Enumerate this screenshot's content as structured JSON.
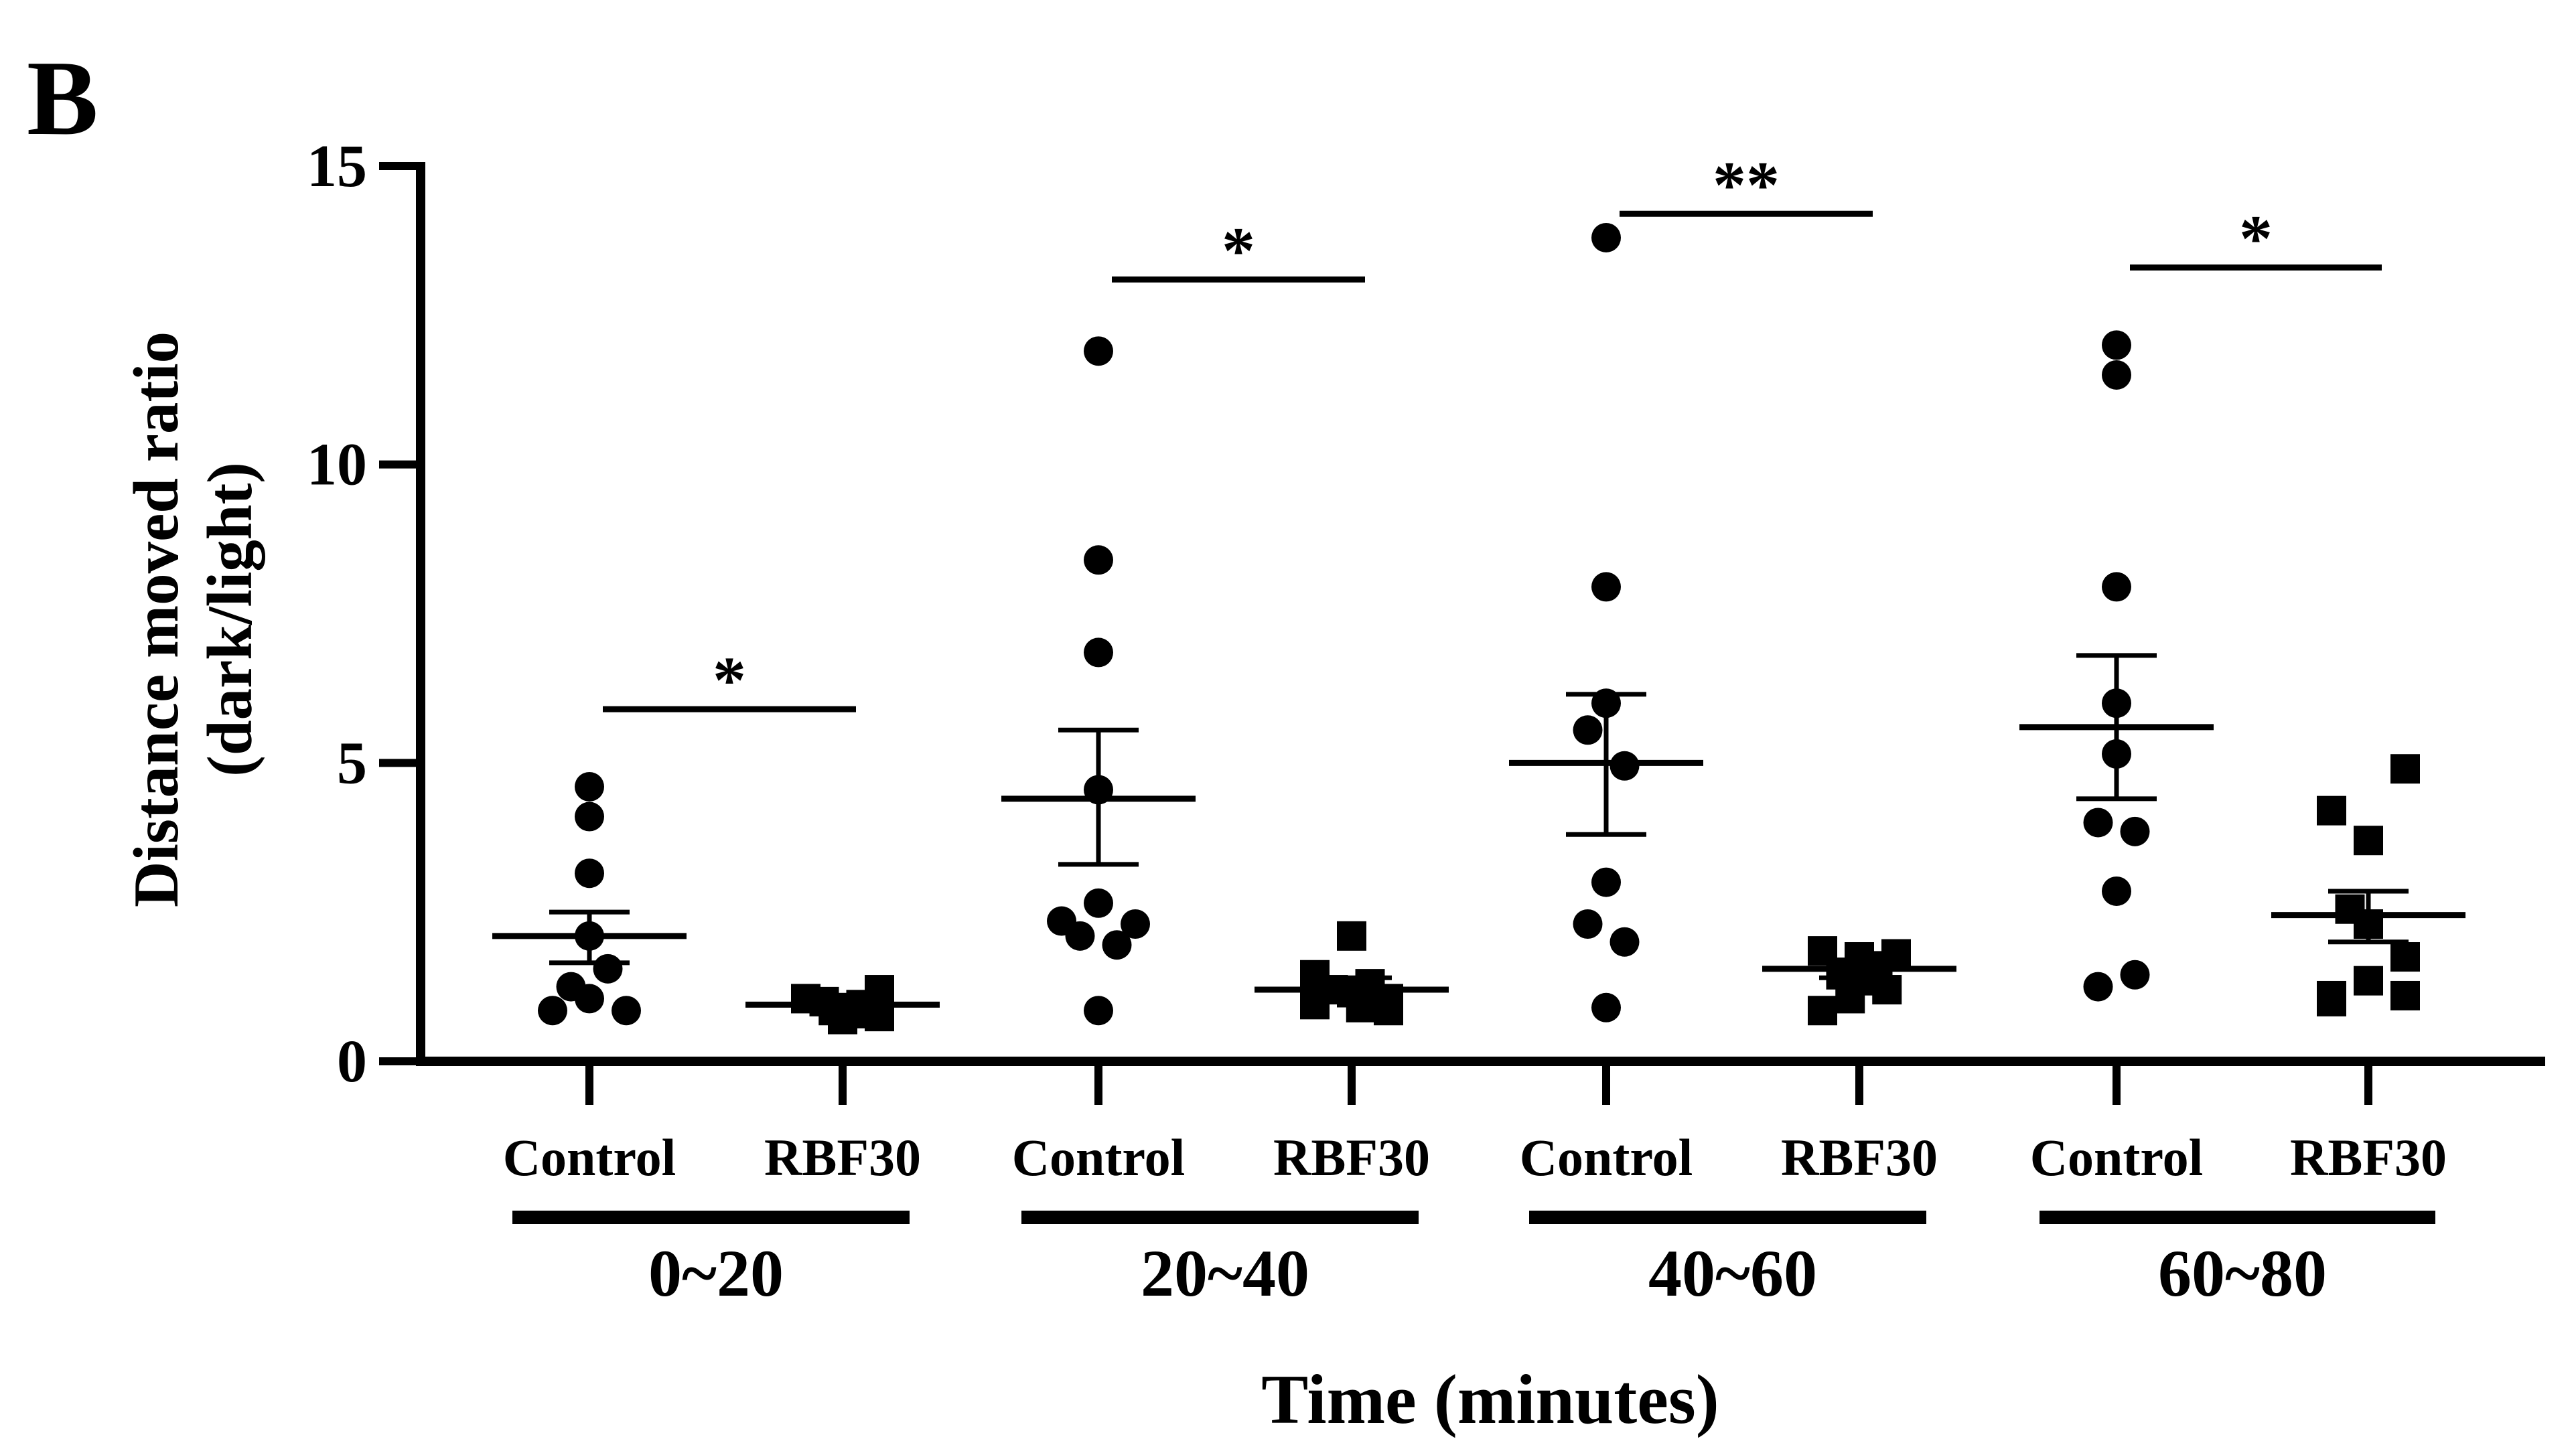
{
  "panel_label": "B",
  "chart_data": {
    "type": "scatter",
    "title": "",
    "ylabel_line1": "Distance moved ratio",
    "ylabel_line2": "(dark/light)",
    "xlabel": "Time (minutes)",
    "ylim": [
      0,
      15
    ],
    "yticks": [
      0,
      5,
      10,
      15
    ],
    "time_groups": [
      {
        "label": "0~20",
        "significance": "*",
        "bracket_y": 5.9,
        "groups": [
          {
            "name": "Control",
            "marker": "circle",
            "mean": 2.1,
            "sem_low": 1.65,
            "sem_high": 2.5,
            "points": [
              {
                "y": 4.6,
                "j": 0
              },
              {
                "y": 4.1,
                "j": 0
              },
              {
                "y": 3.15,
                "j": 0
              },
              {
                "y": 2.1,
                "j": 0
              },
              {
                "y": 1.55,
                "j": 0.5
              },
              {
                "y": 1.25,
                "j": -0.5
              },
              {
                "y": 1.05,
                "j": 0
              },
              {
                "y": 0.85,
                "j": -1
              },
              {
                "y": 0.85,
                "j": 1
              }
            ]
          },
          {
            "name": "RBF30",
            "marker": "square",
            "mean": 0.95,
            "sem_low": 0.87,
            "sem_high": 1.03,
            "points": [
              {
                "y": 1.2,
                "j": 1
              },
              {
                "y": 1.05,
                "j": -1
              },
              {
                "y": 1.0,
                "j": -0.5
              },
              {
                "y": 0.95,
                "j": 0.5
              },
              {
                "y": 0.9,
                "j": 0
              },
              {
                "y": 0.85,
                "j": -0.25
              },
              {
                "y": 0.8,
                "j": 0.25
              },
              {
                "y": 0.75,
                "j": 1
              },
              {
                "y": 0.7,
                "j": 0
              }
            ]
          }
        ]
      },
      {
        "label": "20~40",
        "significance": "*",
        "bracket_y": 13.1,
        "groups": [
          {
            "name": "Control",
            "marker": "circle",
            "mean": 4.4,
            "sem_low": 3.3,
            "sem_high": 5.55,
            "points": [
              {
                "y": 11.9,
                "j": 0
              },
              {
                "y": 8.4,
                "j": 0
              },
              {
                "y": 6.85,
                "j": 0
              },
              {
                "y": 4.55,
                "j": 0
              },
              {
                "y": 2.65,
                "j": 0
              },
              {
                "y": 2.35,
                "j": -1
              },
              {
                "y": 2.3,
                "j": 1
              },
              {
                "y": 2.1,
                "j": -0.5
              },
              {
                "y": 1.95,
                "j": 0.5
              },
              {
                "y": 0.85,
                "j": 0
              }
            ]
          },
          {
            "name": "RBF30",
            "marker": "square",
            "mean": 1.2,
            "sem_low": 1.05,
            "sem_high": 1.4,
            "points": [
              {
                "y": 2.1,
                "j": 0
              },
              {
                "y": 1.45,
                "j": -1
              },
              {
                "y": 1.3,
                "j": 0.5
              },
              {
                "y": 1.2,
                "j": -0.5
              },
              {
                "y": 1.15,
                "j": 0
              },
              {
                "y": 1.05,
                "j": 1
              },
              {
                "y": 0.95,
                "j": -1
              },
              {
                "y": 0.9,
                "j": 0.25
              },
              {
                "y": 0.85,
                "j": 1
              }
            ]
          }
        ]
      },
      {
        "label": "40~60",
        "significance": "**",
        "bracket_y": 14.2,
        "groups": [
          {
            "name": "Control",
            "marker": "circle",
            "mean": 5.0,
            "sem_low": 3.8,
            "sem_high": 6.15,
            "points": [
              {
                "y": 13.8,
                "j": 0
              },
              {
                "y": 7.95,
                "j": 0
              },
              {
                "y": 6.0,
                "j": 0
              },
              {
                "y": 5.55,
                "j": -0.5
              },
              {
                "y": 4.95,
                "j": 0.5
              },
              {
                "y": 3.0,
                "j": 0
              },
              {
                "y": 2.3,
                "j": -0.5
              },
              {
                "y": 2.0,
                "j": 0.5
              },
              {
                "y": 0.9,
                "j": 0
              }
            ]
          },
          {
            "name": "RBF30",
            "marker": "square",
            "mean": 1.55,
            "sem_low": 1.4,
            "sem_high": 1.7,
            "points": [
              {
                "y": 1.85,
                "j": -1
              },
              {
                "y": 1.8,
                "j": 1
              },
              {
                "y": 1.75,
                "j": 0
              },
              {
                "y": 1.6,
                "j": 0.5
              },
              {
                "y": 1.45,
                "j": -0.5
              },
              {
                "y": 1.35,
                "j": 0
              },
              {
                "y": 1.2,
                "j": 0.75
              },
              {
                "y": 1.05,
                "j": -0.25
              },
              {
                "y": 0.85,
                "j": -1
              }
            ]
          }
        ]
      },
      {
        "label": "60~80",
        "significance": "*",
        "bracket_y": 13.3,
        "groups": [
          {
            "name": "Control",
            "marker": "circle",
            "mean": 5.6,
            "sem_low": 4.4,
            "sem_high": 6.8,
            "points": [
              {
                "y": 12.0,
                "j": 0
              },
              {
                "y": 11.5,
                "j": 0
              },
              {
                "y": 7.95,
                "j": 0
              },
              {
                "y": 6.0,
                "j": 0
              },
              {
                "y": 5.15,
                "j": 0
              },
              {
                "y": 4.0,
                "j": -0.5
              },
              {
                "y": 3.85,
                "j": 0.5
              },
              {
                "y": 2.85,
                "j": 0
              },
              {
                "y": 1.45,
                "j": 0.5
              },
              {
                "y": 1.25,
                "j": -0.5
              }
            ]
          },
          {
            "name": "RBF30",
            "marker": "square",
            "mean": 2.45,
            "sem_low": 2.0,
            "sem_high": 2.85,
            "points": [
              {
                "y": 4.9,
                "j": 1
              },
              {
                "y": 4.2,
                "j": -1
              },
              {
                "y": 3.7,
                "j": 0
              },
              {
                "y": 2.55,
                "j": -0.5
              },
              {
                "y": 2.3,
                "j": 0
              },
              {
                "y": 1.75,
                "j": 1
              },
              {
                "y": 1.35,
                "j": 0
              },
              {
                "y": 1.1,
                "j": -1
              },
              {
                "y": 1.1,
                "j": 1
              },
              {
                "y": 1.0,
                "j": -1
              }
            ]
          }
        ]
      }
    ]
  }
}
